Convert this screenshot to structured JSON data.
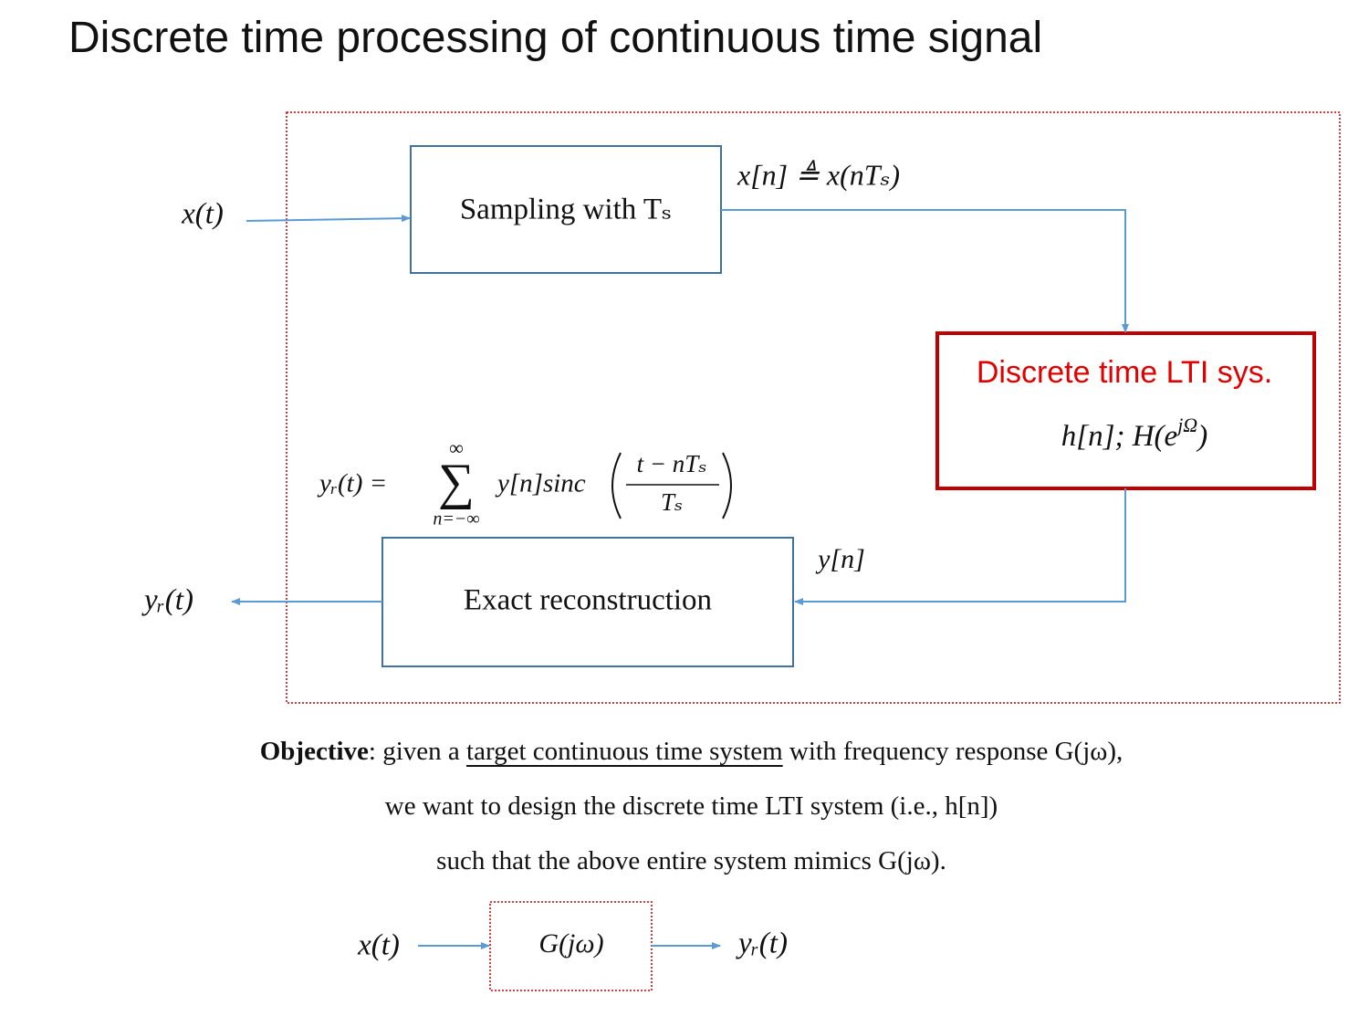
{
  "title": "Discrete time processing of continuous time signal",
  "diagram": {
    "input_label": "x(t)",
    "sampling_block": "Sampling with Tₛ",
    "sampled_label": "x[n] ≜ x(nTₛ)",
    "lti_block": {
      "title": "Discrete time LTI  sys.",
      "response": {
        "text": "h[n];   H(e",
        "sup": "jΩ",
        "close": ")"
      }
    },
    "output_seq_label": "y[n]",
    "reconstruction_block": "Exact reconstruction",
    "output_label": "yᵣ(t)",
    "reconstruction_formula": {
      "lhs": "yᵣ(t) =",
      "sum_upper": "∞",
      "sum": "∑",
      "sum_lower": "n=−∞",
      "term": "y[n]sinc",
      "numerator": "t − nTₛ",
      "denominator": "Tₛ"
    }
  },
  "objective": {
    "line1": {
      "bold": "Objective",
      "text1": ": given a",
      "underlined": "target continuous time system",
      "text2": "with frequency response G(jω),"
    },
    "line2": "we want to design the discrete time LTI system (i.e., h[n])",
    "line3": "such that the above entire system mimics G(jω)."
  },
  "target_system": {
    "input": "x(t)",
    "block": "G(jω)",
    "output": "yᵣ(t)"
  }
}
